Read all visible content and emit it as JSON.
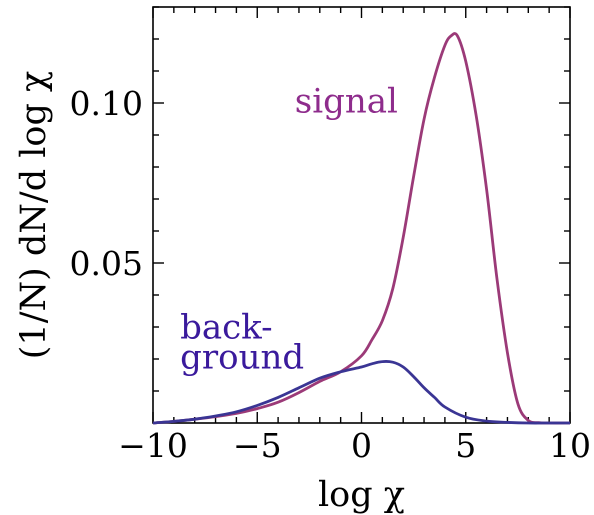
{
  "chart_data": {
    "type": "line",
    "title": "",
    "xlabel": "log χ",
    "ylabel": "(1/N) dN/d log χ",
    "xlim": [
      -10,
      10
    ],
    "ylim": [
      0,
      0.13
    ],
    "x_ticks": [
      -10,
      -5,
      0,
      5,
      10
    ],
    "x_tick_labels": [
      "−10",
      "−5",
      "0",
      "5",
      "10"
    ],
    "y_ticks": [
      0.05,
      0.1
    ],
    "y_tick_labels": [
      "0.05",
      "0.10"
    ],
    "grid": false,
    "series": [
      {
        "name": "signal",
        "color": "#9b3a78",
        "x": [
          -10,
          -9,
          -8,
          -7,
          -6,
          -5,
          -4,
          -3,
          -2,
          -1,
          0,
          0.5,
          1,
          1.5,
          2,
          2.5,
          3,
          3.5,
          4,
          4.3,
          4.6,
          5,
          5.5,
          6,
          6.5,
          7,
          7.5,
          8,
          8.5,
          9,
          10
        ],
        "y": [
          0,
          0.0005,
          0.0012,
          0.002,
          0.003,
          0.0045,
          0.0065,
          0.0095,
          0.013,
          0.016,
          0.021,
          0.026,
          0.032,
          0.042,
          0.058,
          0.077,
          0.095,
          0.108,
          0.118,
          0.121,
          0.121,
          0.113,
          0.096,
          0.073,
          0.045,
          0.022,
          0.006,
          0.0008,
          0.0001,
          0,
          0
        ]
      },
      {
        "name": "background",
        "color": "#3a3594",
        "x": [
          -10,
          -9,
          -8,
          -7,
          -6,
          -5,
          -4,
          -3,
          -2,
          -1,
          0,
          0.5,
          1,
          1.5,
          2,
          2.5,
          3,
          3.5,
          4,
          5,
          6,
          7,
          8,
          9,
          10
        ],
        "y": [
          0,
          0.0005,
          0.0012,
          0.0022,
          0.0035,
          0.0055,
          0.008,
          0.011,
          0.014,
          0.016,
          0.0175,
          0.0185,
          0.0192,
          0.019,
          0.0175,
          0.0145,
          0.011,
          0.008,
          0.005,
          0.0018,
          0.0006,
          0.0002,
          0,
          0,
          0
        ]
      }
    ],
    "annotations": [
      {
        "lines": [
          "signal"
        ],
        "color": "#8e2c8c",
        "at": [
          -3.2,
          0.097
        ]
      },
      {
        "lines": [
          "back-",
          "ground"
        ],
        "color": "#3a1a9c",
        "at": [
          -8.7,
          0.017
        ]
      }
    ]
  }
}
